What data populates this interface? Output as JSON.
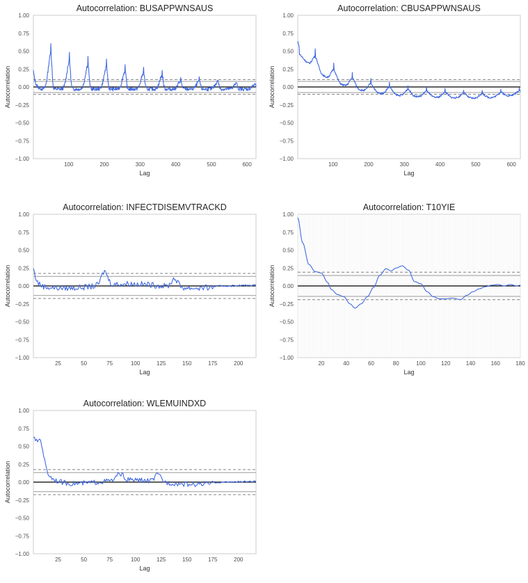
{
  "charts": [
    {
      "title": "Autocorrelation: BUSAPPWNSAUS",
      "xlabel": "Lag",
      "ylabel": "Autocorrelation",
      "xlim": [
        1,
        625
      ],
      "ylim": [
        -1.0,
        1.0
      ],
      "xticks": [
        100,
        200,
        300,
        400,
        500,
        600
      ],
      "yticks": [
        "1.00",
        "0.75",
        "0.50",
        "0.25",
        "0.00",
        "−0.25",
        "−0.50",
        "−0.75",
        "−1.00"
      ],
      "yticks_values": [
        1.0,
        0.75,
        0.5,
        0.25,
        0.0,
        -0.25,
        -0.5,
        -0.75,
        -1.0
      ],
      "conf_99": 0.103,
      "conf_95": 0.078,
      "pattern": "seasonal",
      "pattern_params": {
        "period": 52,
        "first": 50,
        "peaks": [
          0.66,
          0.51,
          0.45,
          0.4,
          0.33,
          0.3,
          0.25,
          0.15,
          0.15,
          0.14,
          0.1,
          0.08
        ],
        "base": 0.0
      }
    },
    {
      "title": "Autocorrelation: CBUSAPPWNSAUS",
      "xlabel": "Lag",
      "ylabel": "Autocorrelation",
      "xlim": [
        1,
        625
      ],
      "ylim": [
        -1.0,
        1.0
      ],
      "xticks": [
        100,
        200,
        300,
        400,
        500,
        600
      ],
      "yticks": [
        "1.00",
        "0.75",
        "0.50",
        "0.25",
        "0.00",
        "−0.25",
        "−0.50",
        "−0.75",
        "−1.00"
      ],
      "yticks_values": [
        1.0,
        0.75,
        0.5,
        0.25,
        0.0,
        -0.25,
        -0.5,
        -0.75,
        -1.0
      ],
      "conf_99": 0.103,
      "conf_95": 0.078,
      "pattern": "decay_seasonal",
      "pattern_params": {
        "period": 52,
        "first": 50,
        "start": 0.66
      }
    },
    {
      "title": "Autocorrelation: INFECTDISEMVTRACKD",
      "xlabel": "Lag",
      "ylabel": "Autocorrelation",
      "xlim": [
        1,
        217
      ],
      "ylim": [
        -1.0,
        1.0
      ],
      "xticks": [
        25,
        50,
        75,
        100,
        125,
        150,
        175,
        200
      ],
      "yticks": [
        "1.00",
        "0.75",
        "0.50",
        "0.25",
        "0.00",
        "−0.25",
        "−0.50",
        "−0.75",
        "−1.00"
      ],
      "yticks_values": [
        1.0,
        0.75,
        0.5,
        0.25,
        0.0,
        -0.25,
        -0.5,
        -0.75,
        -1.0
      ],
      "conf_99": 0.175,
      "conf_95": 0.133,
      "pattern": "noise_bumps",
      "pattern_params": {
        "start": 0.35,
        "bumps": [
          [
            70,
            0.24
          ],
          [
            138,
            0.15
          ]
        ]
      }
    },
    {
      "title": "Autocorrelation: T10YIE",
      "xlabel": "Lag",
      "ylabel": "Autocorrelation",
      "xlim": [
        1,
        180
      ],
      "ylim": [
        -1.0,
        1.0
      ],
      "xticks": [
        20,
        40,
        60,
        80,
        100,
        120,
        140,
        160,
        180
      ],
      "yticks": [
        "1.00",
        "0.75",
        "0.50",
        "0.25",
        "0.00",
        "−0.25",
        "−0.50",
        "−0.75",
        "−1.00"
      ],
      "yticks_values": [
        1.0,
        0.75,
        0.5,
        0.25,
        0.0,
        -0.25,
        -0.5,
        -0.75,
        -1.0
      ],
      "conf_99": 0.192,
      "conf_95": 0.146,
      "pattern": "smooth",
      "pattern_params": {
        "knots": [
          [
            1,
            0.95
          ],
          [
            5,
            0.6
          ],
          [
            10,
            0.3
          ],
          [
            15,
            0.2
          ],
          [
            20,
            0.18
          ],
          [
            25,
            0.05
          ],
          [
            28,
            -0.05
          ],
          [
            33,
            -0.12
          ],
          [
            38,
            -0.15
          ],
          [
            43,
            -0.25
          ],
          [
            47,
            -0.31
          ],
          [
            52,
            -0.25
          ],
          [
            57,
            -0.15
          ],
          [
            62,
            -0.02
          ],
          [
            67,
            0.15
          ],
          [
            72,
            0.24
          ],
          [
            76,
            0.21
          ],
          [
            80,
            0.25
          ],
          [
            85,
            0.28
          ],
          [
            90,
            0.22
          ],
          [
            95,
            0.06
          ],
          [
            100,
            0.03
          ],
          [
            105,
            -0.08
          ],
          [
            110,
            -0.15
          ],
          [
            115,
            -0.18
          ],
          [
            120,
            -0.18
          ],
          [
            125,
            -0.17
          ],
          [
            132,
            -0.19
          ],
          [
            137,
            -0.13
          ],
          [
            142,
            -0.08
          ],
          [
            147,
            -0.04
          ],
          [
            152,
            -0.01
          ],
          [
            157,
            0.01
          ],
          [
            162,
            0.02
          ],
          [
            167,
            0.0
          ],
          [
            172,
            0.02
          ],
          [
            177,
            0.0
          ],
          [
            180,
            0.01
          ]
        ]
      }
    },
    {
      "title": "Autocorrelation: WLEMUINDXD",
      "xlabel": "Lag",
      "ylabel": "Autocorrelation",
      "xlim": [
        1,
        217
      ],
      "ylim": [
        -1.0,
        1.0
      ],
      "xticks": [
        25,
        50,
        75,
        100,
        125,
        150,
        175,
        200
      ],
      "yticks": [
        "1.00",
        "0.75",
        "0.50",
        "0.25",
        "0.00",
        "−0.25",
        "−0.50",
        "−0.75",
        "−1.00"
      ],
      "yticks_values": [
        1.0,
        0.75,
        0.5,
        0.25,
        0.0,
        -0.25,
        -0.5,
        -0.75,
        -1.0
      ],
      "conf_99": 0.175,
      "conf_95": 0.133,
      "pattern": "decay_noise",
      "pattern_params": {
        "start": 0.7,
        "bumps": [
          [
            8,
            0.38
          ],
          [
            85,
            0.12
          ],
          [
            122,
            0.12
          ]
        ]
      }
    }
  ],
  "chart_data": [
    {
      "type": "line",
      "title": "Autocorrelation: BUSAPPWNSAUS",
      "xlabel": "Lag",
      "ylabel": "Autocorrelation",
      "xlim": [
        1,
        625
      ],
      "ylim": [
        -1.0,
        1.0
      ],
      "series": [
        {
          "values_description_free": true,
          "x_range": [
            1,
            625
          ],
          "peaks": [
            [
              50,
              0.66
            ],
            [
              102,
              0.51
            ],
            [
              154,
              0.45
            ],
            [
              206,
              0.4
            ],
            [
              258,
              0.33
            ],
            [
              310,
              0.3
            ],
            [
              362,
              0.25
            ],
            [
              414,
              0.15
            ],
            [
              466,
              0.15
            ],
            [
              518,
              0.14
            ],
            [
              570,
              0.1
            ],
            [
              622,
              0.08
            ]
          ]
        }
      ],
      "conf_bands": [
        0.103,
        0.078
      ]
    },
    {
      "type": "line",
      "title": "Autocorrelation: CBUSAPPWNSAUS",
      "xlabel": "Lag",
      "ylabel": "Autocorrelation",
      "xlim": [
        1,
        625
      ],
      "ylim": [
        -1.0,
        1.0
      ],
      "series": [
        {
          "x_range": [
            1,
            625
          ],
          "points": [
            [
              1,
              0.66
            ],
            [
              20,
              0.4
            ],
            [
              50,
              0.65
            ],
            [
              100,
              0.2
            ],
            [
              155,
              0.2
            ],
            [
              210,
              0.12
            ],
            [
              260,
              0.05
            ],
            [
              300,
              -0.15
            ],
            [
              400,
              -0.12
            ],
            [
              500,
              -0.12
            ],
            [
              600,
              -0.06
            ],
            [
              625,
              0.0
            ]
          ]
        }
      ],
      "conf_bands": [
        0.103,
        0.078
      ]
    },
    {
      "type": "line",
      "title": "Autocorrelation: INFECTDISEMVTRACKD",
      "xlabel": "Lag",
      "ylabel": "Autocorrelation",
      "xlim": [
        1,
        217
      ],
      "ylim": [
        -1.0,
        1.0
      ],
      "series": [
        {
          "x_range": [
            1,
            217
          ],
          "points": [
            [
              1,
              0.35
            ],
            [
              10,
              0.05
            ],
            [
              30,
              -0.08
            ],
            [
              70,
              0.24
            ],
            [
              80,
              0.02
            ],
            [
              110,
              -0.1
            ],
            [
              138,
              0.15
            ],
            [
              150,
              0.02
            ],
            [
              200,
              -0.01
            ]
          ]
        }
      ],
      "conf_bands": [
        0.175,
        0.133
      ]
    },
    {
      "type": "line",
      "title": "Autocorrelation: T10YIE",
      "xlabel": "Lag",
      "ylabel": "Autocorrelation",
      "xlim": [
        1,
        180
      ],
      "ylim": [
        -1.0,
        1.0
      ],
      "series": [
        {
          "x_range": [
            1,
            180
          ],
          "points": [
            [
              1,
              0.95
            ],
            [
              10,
              0.3
            ],
            [
              20,
              0.18
            ],
            [
              47,
              -0.31
            ],
            [
              72,
              0.24
            ],
            [
              85,
              0.28
            ],
            [
              100,
              0.03
            ],
            [
              120,
              -0.18
            ],
            [
              132,
              -0.19
            ],
            [
              160,
              0.01
            ],
            [
              180,
              0.01
            ]
          ]
        }
      ],
      "conf_bands": [
        0.192,
        0.146
      ]
    },
    {
      "type": "line",
      "title": "Autocorrelation: WLEMUINDXD",
      "xlabel": "Lag",
      "ylabel": "Autocorrelation",
      "xlim": [
        1,
        217
      ],
      "ylim": [
        -1.0,
        1.0
      ],
      "series": [
        {
          "x_range": [
            1,
            217
          ],
          "points": [
            [
              1,
              0.7
            ],
            [
              8,
              0.38
            ],
            [
              20,
              0.15
            ],
            [
              40,
              -0.05
            ],
            [
              85,
              0.12
            ],
            [
              122,
              0.12
            ],
            [
              160,
              -0.1
            ],
            [
              200,
              0.0
            ]
          ]
        }
      ],
      "conf_bands": [
        0.175,
        0.133
      ]
    }
  ],
  "colors": {
    "line": "#4169e1",
    "conf99": "#808080",
    "conf95": "#9a9a9a",
    "zero": "#000000",
    "frame": "#cccccc",
    "grid": "#f0f0f0"
  }
}
